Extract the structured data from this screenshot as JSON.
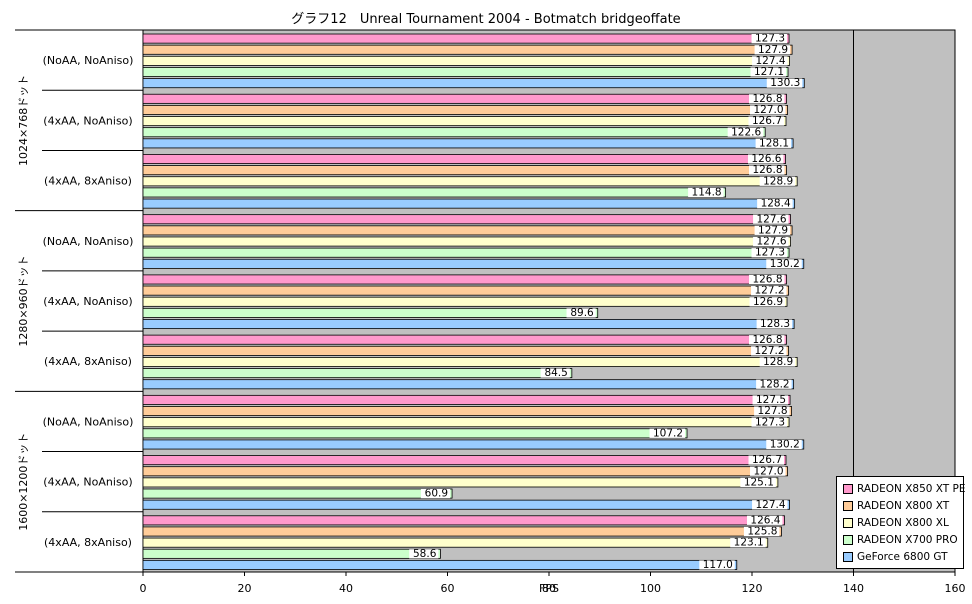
{
  "chart_data": {
    "type": "bar",
    "orientation": "horizontal",
    "title": "グラフ12　Unreal Tournament 2004 - Botmatch bridgeoffate",
    "xlabel": "FPS",
    "xlim": [
      0,
      160
    ],
    "xticks": [
      0,
      20,
      40,
      60,
      80,
      100,
      120,
      140,
      160
    ],
    "grid": false,
    "plot_background": "#c0c0c0",
    "legend_position": "bottom-right",
    "groups": [
      {
        "name": "1024×768ドット",
        "categories": [
          "(NoAA, NoAniso)",
          "(4xAA, NoAniso)",
          "(4xAA, 8xAniso)"
        ]
      },
      {
        "name": "1280×960ドット",
        "categories": [
          "(NoAA, NoAniso)",
          "(4xAA, NoAniso)",
          "(4xAA, 8xAniso)"
        ]
      },
      {
        "name": "1600×1200ドット",
        "categories": [
          "(NoAA, NoAniso)",
          "(4xAA, NoAniso)",
          "(4xAA, 8xAniso)"
        ]
      }
    ],
    "series": [
      {
        "name": "RADEON X850 XT PE",
        "color": "#ff99cc",
        "values": [
          127.3,
          126.8,
          126.6,
          127.6,
          126.8,
          126.8,
          127.5,
          126.7,
          126.4
        ]
      },
      {
        "name": "RADEON X800 XT",
        "color": "#ffcc99",
        "values": [
          127.9,
          127.0,
          126.8,
          127.9,
          127.2,
          127.2,
          127.8,
          127.0,
          125.8
        ]
      },
      {
        "name": "RADEON X800 XL",
        "color": "#ffffcc",
        "values": [
          127.4,
          126.7,
          128.9,
          127.6,
          126.9,
          128.9,
          127.3,
          125.1,
          123.1
        ]
      },
      {
        "name": "RADEON X700 PRO",
        "color": "#ccffcc",
        "values": [
          127.1,
          122.6,
          114.8,
          127.3,
          89.6,
          84.5,
          107.2,
          60.9,
          58.6
        ]
      },
      {
        "name": "GeForce 6800 GT",
        "color": "#99ccff",
        "values": [
          130.3,
          128.1,
          128.4,
          130.2,
          128.3,
          128.2,
          130.2,
          127.4,
          117.0
        ]
      }
    ]
  }
}
